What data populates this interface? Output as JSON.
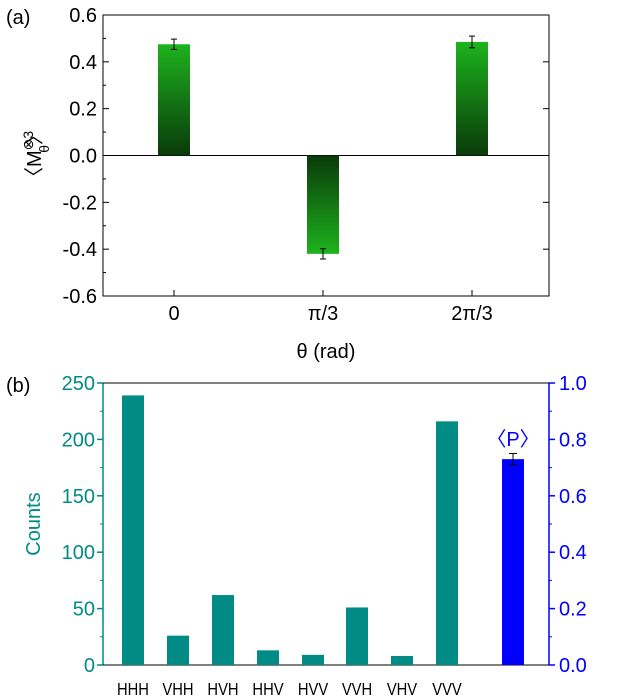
{
  "chart_data": [
    {
      "type": "bar",
      "panel_label": "(a)",
      "categories": [
        "0",
        "π/3",
        "2π/3"
      ],
      "values": [
        0.475,
        -0.42,
        0.485
      ],
      "errors": [
        0.022,
        0.022,
        0.025
      ],
      "xlabel": "θ (rad)",
      "ylabel_parts": {
        "open": "〈",
        "base": "M",
        "sup": "⊗3",
        "sub": "θ",
        "close": "〉"
      },
      "ylim": [
        -0.6,
        0.6
      ],
      "yticks": [
        "0.6",
        "0.4",
        "0.2",
        "0.0",
        "-0.2",
        "-0.4",
        "-0.6"
      ],
      "ytick_values": [
        0.6,
        0.4,
        0.2,
        0.0,
        -0.2,
        -0.4,
        -0.6
      ],
      "colors": {
        "bright": "#1db31d",
        "dark": "#0a3a0a",
        "axis": "#000000"
      }
    },
    {
      "type": "bar",
      "panel_label": "(b)",
      "categories": [
        "HHH",
        "VHH",
        "HVH",
        "HHV",
        "HVV",
        "VVH",
        "VHV",
        "VVV"
      ],
      "values": [
        239,
        26,
        62,
        13,
        9,
        51,
        8,
        216
      ],
      "ylabel": "Counts",
      "ylim": [
        0,
        250
      ],
      "yticks": [
        "250",
        "200",
        "150",
        "100",
        "50",
        "0"
      ],
      "ytick_values": [
        250,
        200,
        150,
        100,
        50,
        0
      ],
      "right_axis": {
        "label": "〈P〉",
        "value": 0.73,
        "error": 0.02,
        "ylim": [
          0,
          1.0
        ],
        "yticks": [
          "1.0",
          "0.8",
          "0.6",
          "0.4",
          "0.2",
          "0.0"
        ],
        "ytick_values": [
          1.0,
          0.8,
          0.6,
          0.4,
          0.2,
          0.0
        ]
      },
      "colors": {
        "counts": "#008b84",
        "purity": "#0000ff",
        "axis_left": "#008b84",
        "axis_right": "#0000ff"
      }
    }
  ]
}
